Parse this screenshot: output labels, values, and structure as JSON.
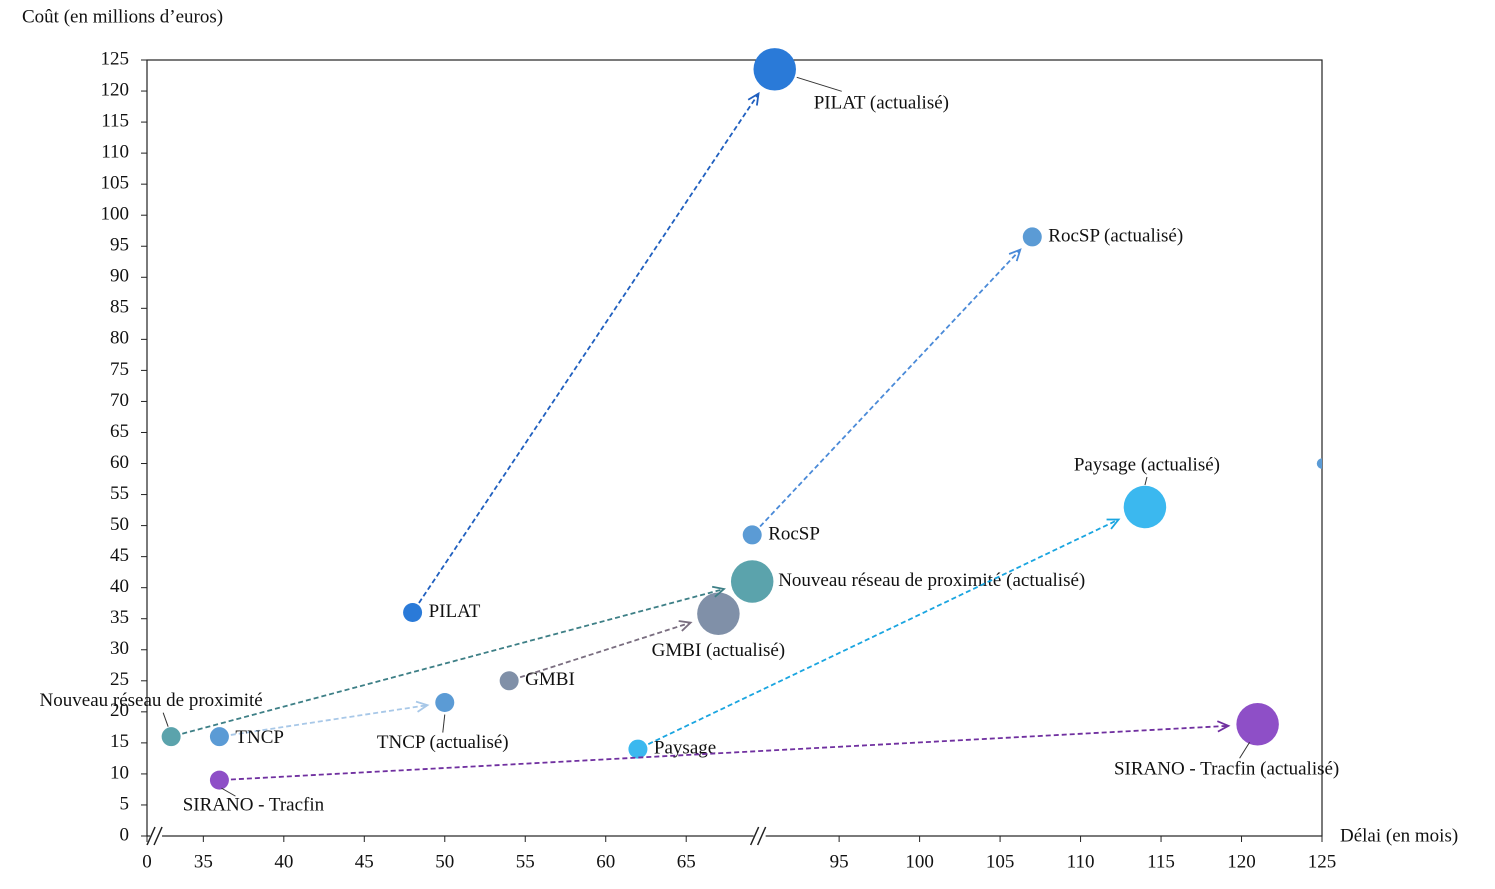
{
  "chart_data": {
    "type": "bubble",
    "ylabel": "Coût (en millions d’euros)",
    "xlabel": "Délai (en mois)",
    "xlim": [
      0,
      125
    ],
    "ylim": [
      0,
      125
    ],
    "xbreaks": [
      [
        0.5,
        32
      ],
      [
        69.5,
        90
      ]
    ],
    "xticks": [
      0,
      35,
      40,
      45,
      50,
      55,
      60,
      65,
      95,
      100,
      105,
      110,
      115,
      120,
      125
    ],
    "yticks": [
      0,
      5,
      10,
      15,
      20,
      25,
      30,
      35,
      40,
      45,
      50,
      55,
      60,
      65,
      70,
      75,
      80,
      85,
      90,
      95,
      100,
      105,
      110,
      115,
      120,
      125
    ],
    "series": [
      {
        "color": "#2a7ad8",
        "arrow_color": "#1f5fbf",
        "labels": [
          "PILAT",
          "PILAT (actualisé)"
        ],
        "x": [
          48,
          91
        ],
        "y": [
          36,
          123.5
        ],
        "sizes": [
          1,
          5
        ]
      },
      {
        "color": "#5b9bd5",
        "arrow_color": "#4a8ad8",
        "labels": [
          "RocSP",
          "RocSP (actualisé)"
        ],
        "x": [
          69.1,
          107
        ],
        "y": [
          48.5,
          96.5
        ],
        "sizes": [
          1,
          1
        ]
      },
      {
        "color": "#5ba3ac",
        "arrow_color": "#3d7f86",
        "labels": [
          "Nouveau réseau de proximité",
          "Nouveau réseau de proximité (actualisé)"
        ],
        "x": [
          33,
          69.1
        ],
        "y": [
          16,
          41
        ],
        "sizes": [
          1,
          5
        ]
      },
      {
        "color": "#5b9bd5",
        "arrow_color": "#a8c8e8",
        "labels": [
          "TNCP",
          "TNCP (actualisé)"
        ],
        "x": [
          36,
          50
        ],
        "y": [
          16,
          21.5
        ],
        "sizes": [
          1,
          1
        ]
      },
      {
        "color": "#8090a8",
        "arrow_color": "#7a6e80",
        "labels": [
          "GMBI",
          "GMBI (actualisé)"
        ],
        "x": [
          54,
          67
        ],
        "y": [
          25,
          35.8
        ],
        "sizes": [
          1,
          5
        ]
      },
      {
        "color": "#3bb8ef",
        "arrow_color": "#1aa5e0",
        "labels": [
          "Paysage",
          "Paysage (actualisé)"
        ],
        "x": [
          62,
          114
        ],
        "y": [
          14,
          53
        ],
        "sizes": [
          1,
          5
        ]
      },
      {
        "color": "#8e4fc7",
        "arrow_color": "#7030a0",
        "labels": [
          "SIRANO - Tracfin",
          "SIRANO - Tracfin (actualisé)"
        ],
        "x": [
          36,
          121
        ],
        "y": [
          9,
          18
        ],
        "sizes": [
          1,
          5
        ]
      },
      {
        "color": "#5b9bd5",
        "x": [
          125
        ],
        "y": [
          60
        ],
        "sizes": [
          0.3
        ]
      }
    ]
  }
}
